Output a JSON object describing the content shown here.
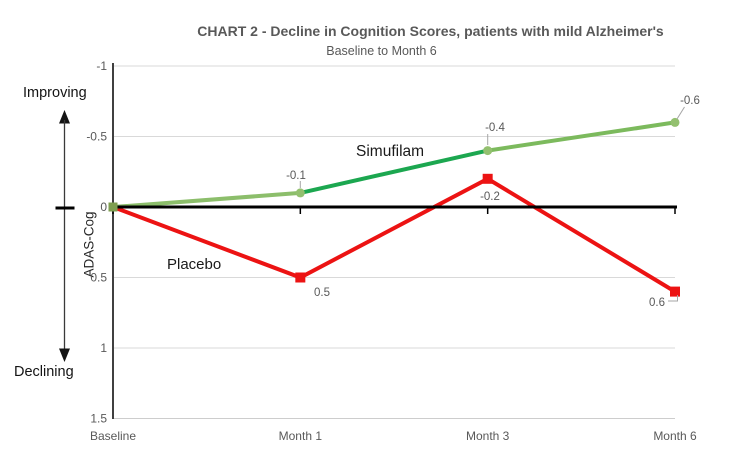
{
  "header": {
    "title": "CHART 2 - Decline in Cognition Scores, patients with mild Alzheimer's",
    "subtitle": "Baseline to Month 6"
  },
  "chart_data": {
    "type": "line",
    "title": "CHART 2 - Decline in Cognition Scores, patients with mild Alzheimer's",
    "subtitle": "Baseline to Month 6",
    "categories": [
      "Baseline",
      "Month 1",
      "Month 3",
      "Month 6"
    ],
    "y_axis": {
      "label": "ADAS-Cog",
      "ticks": [
        -1,
        -0.5,
        0,
        0.5,
        1,
        1.5
      ],
      "tick_labels": [
        "-1",
        "-0.5",
        "0",
        "0.5",
        "1",
        "1.5"
      ],
      "range": [
        -1,
        1.5
      ],
      "inverted": true,
      "grid": true
    },
    "annotations": {
      "improving": "Improving",
      "declining": "Declining"
    },
    "series": [
      {
        "name": "Simufilam",
        "values": [
          0,
          -0.1,
          -0.4,
          -0.6
        ],
        "point_labels": [
          "",
          "-0.1",
          "-0.4",
          "-0.6"
        ],
        "line_colors": [
          "#8cbe6b",
          "#1ca750",
          "#7cba5d"
        ],
        "marker": "circle",
        "marker_color": "#93c06f",
        "start_marker_color": "#7e9e50"
      },
      {
        "name": "Placebo",
        "values": [
          0,
          0.5,
          -0.2,
          0.6
        ],
        "point_labels": [
          "",
          "0.5",
          "-0.2",
          "0.6"
        ],
        "color": "#ec1313",
        "marker": "square"
      }
    ]
  },
  "colors": {
    "text_gray": "#595959",
    "gridline": "#d9d9d9",
    "zero_line": "#000000",
    "axis_line": "#404040",
    "leader_line": "#a6a6a6"
  }
}
